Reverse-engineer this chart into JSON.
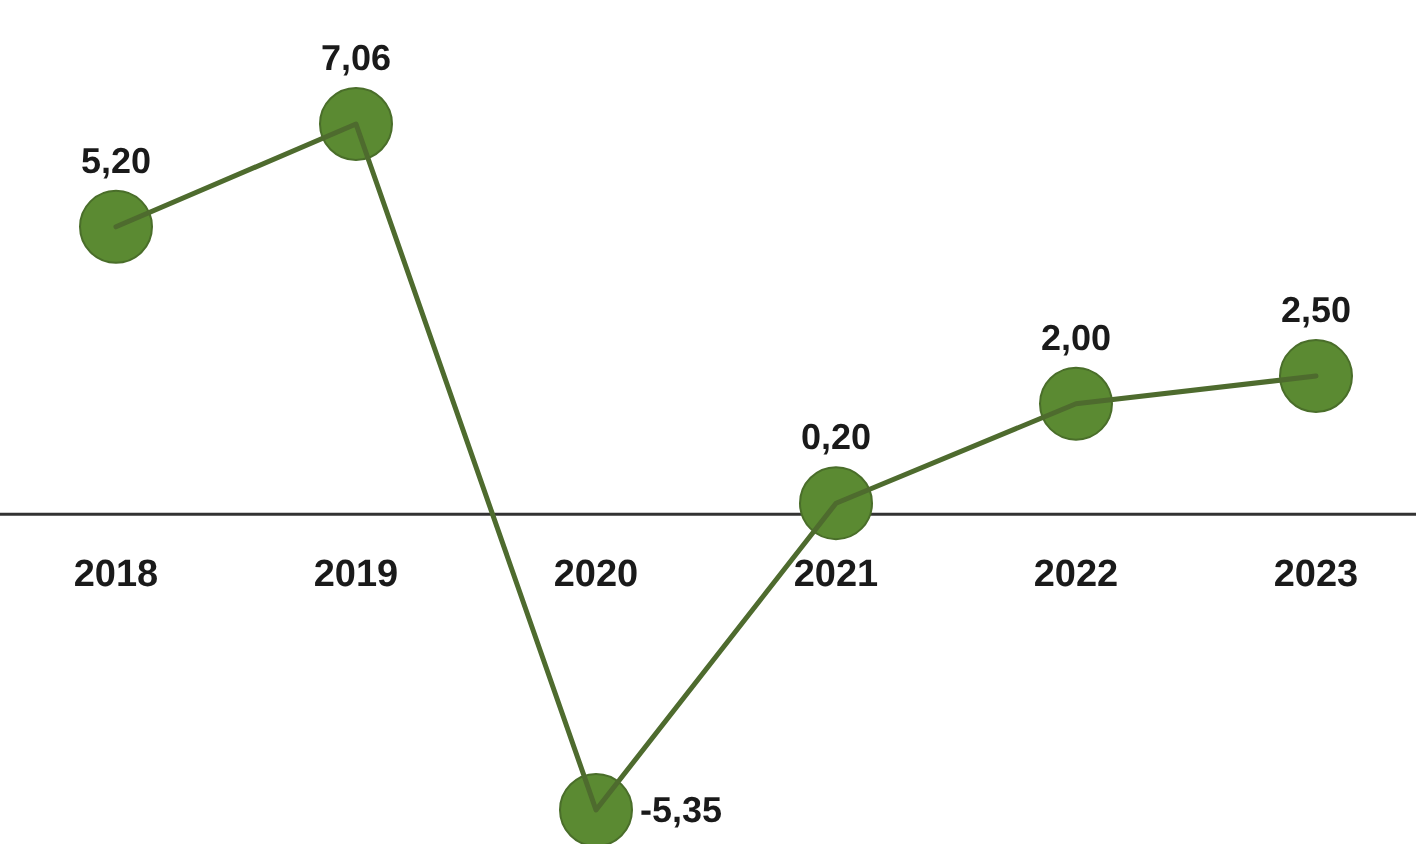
{
  "chart_data": {
    "type": "line",
    "categories": [
      "2018",
      "2019",
      "2020",
      "2021",
      "2022",
      "2023"
    ],
    "series": [
      {
        "color": "#5b8a32",
        "values": [
          5.2,
          7.06,
          -5.35,
          0.2,
          2.0,
          2.5
        ],
        "value_labels": [
          "5,20",
          "7,06",
          "-5,35",
          "0,20",
          "2,00",
          "2,50"
        ]
      }
    ],
    "marker": "circle",
    "line_style": "solid"
  }
}
